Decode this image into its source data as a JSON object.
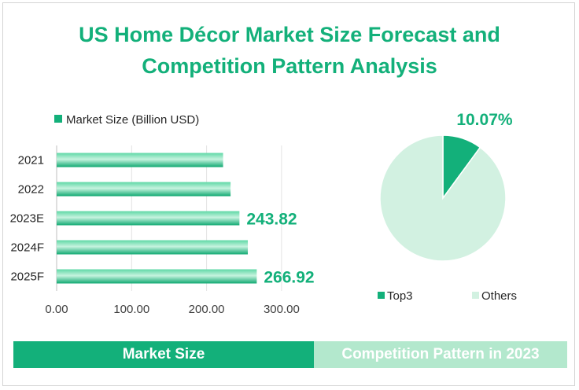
{
  "title": {
    "line1": "US Home Décor Market Size Forecast and",
    "line2": "Competition Pattern Analysis"
  },
  "chart_data": [
    {
      "type": "bar",
      "orientation": "horizontal",
      "categories": [
        "2021",
        "2022",
        "2023E",
        "2024F",
        "2025F"
      ],
      "series": [
        {
          "name": "Market Size (Billion USD)",
          "values": [
            222,
            232,
            243.82,
            255,
            266.92
          ]
        }
      ],
      "data_labels": [
        null,
        null,
        "243.82",
        null,
        "266.92"
      ],
      "xlim": [
        0,
        300
      ],
      "x_ticks": [
        "0.00",
        "100.00",
        "200.00",
        "300.00"
      ],
      "legend_position": "top-left",
      "grid": true,
      "colors": {
        "bar": "#13b07a",
        "label": "#13b07a"
      }
    },
    {
      "type": "pie",
      "slices": [
        {
          "name": "Top3",
          "value": 10.07,
          "label": "10.07%",
          "color": "#13b07a"
        },
        {
          "name": "Others",
          "value": 89.93,
          "label": "",
          "color": "#d2f1e1"
        }
      ],
      "legend_position": "bottom"
    }
  ],
  "footer": {
    "left_label": "Market Size",
    "right_label": "Competition Pattern in 2023"
  },
  "colors": {
    "accent": "#13b07a",
    "accent_light": "#b3e8cd",
    "pie_light": "#d2f1e1"
  }
}
